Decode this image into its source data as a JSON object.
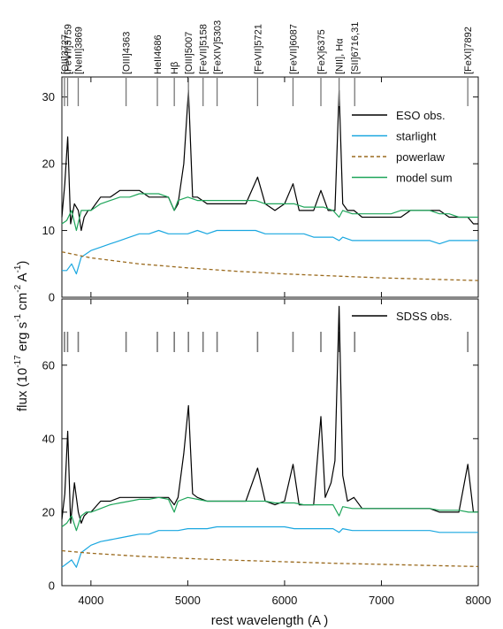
{
  "chart_data": [
    {
      "panel": "top",
      "type": "line",
      "xlim": [
        3700,
        8000
      ],
      "ylim": [
        0,
        33
      ],
      "yticks": [
        0,
        10,
        20,
        30
      ],
      "series": [
        {
          "name": "ESO obs.",
          "color": "#000000",
          "style": "solid",
          "x": [
            3700,
            3730,
            3760,
            3790,
            3830,
            3870,
            3900,
            3930,
            3970,
            4000,
            4100,
            4200,
            4300,
            4400,
            4500,
            4600,
            4700,
            4800,
            4860,
            4900,
            4959,
            5007,
            5050,
            5100,
            5200,
            5300,
            5400,
            5500,
            5600,
            5721,
            5800,
            5900,
            6000,
            6087,
            6150,
            6250,
            6300,
            6375,
            6450,
            6520,
            6563,
            6600,
            6650,
            6716,
            6800,
            6900,
            7000,
            7100,
            7200,
            7300,
            7400,
            7500,
            7600,
            7700,
            7800,
            7892,
            7950,
            8000
          ],
          "y": [
            12,
            17,
            24,
            11,
            14,
            13,
            10,
            12,
            13,
            13,
            15,
            15,
            16,
            16,
            16,
            15,
            15,
            15,
            13,
            14,
            20,
            31,
            15,
            15,
            14,
            14,
            14,
            14,
            14,
            18,
            14,
            13,
            14,
            17,
            13,
            13,
            13,
            16,
            13,
            13,
            31,
            14,
            13,
            13,
            12,
            12,
            12,
            12,
            12,
            13,
            13,
            13,
            13,
            12,
            12,
            12,
            11,
            11
          ]
        },
        {
          "name": "starlight",
          "color": "#1aa7e0",
          "style": "solid",
          "x": [
            3700,
            3750,
            3800,
            3850,
            3900,
            3950,
            4000,
            4100,
            4200,
            4300,
            4400,
            4500,
            4600,
            4700,
            4800,
            4900,
            5000,
            5100,
            5200,
            5300,
            5400,
            5500,
            5600,
            5700,
            5800,
            5900,
            6000,
            6100,
            6200,
            6300,
            6400,
            6500,
            6563,
            6600,
            6700,
            6800,
            6900,
            7000,
            7100,
            7200,
            7300,
            7400,
            7500,
            7600,
            7700,
            7800,
            7900,
            8000
          ],
          "y": [
            4,
            4,
            5,
            3.5,
            6,
            6.5,
            7,
            7.5,
            8,
            8.5,
            9,
            9.5,
            9.5,
            10,
            9.5,
            9.5,
            9.5,
            10,
            9.5,
            10,
            10,
            10,
            10,
            10,
            9.5,
            9.5,
            9.5,
            9.5,
            9.5,
            9,
            9,
            9,
            8.5,
            9,
            8.5,
            8.5,
            8.5,
            8.5,
            8.5,
            8.5,
            8.5,
            8.5,
            8.5,
            8,
            8.5,
            8.5,
            8.5,
            8.5
          ]
        },
        {
          "name": "powerlaw",
          "color": "#9a6a1e",
          "style": "dashed",
          "x": [
            3700,
            4000,
            4500,
            5000,
            5500,
            6000,
            6500,
            7000,
            7500,
            8000
          ],
          "y": [
            6.8,
            5.9,
            5.0,
            4.4,
            3.9,
            3.5,
            3.2,
            2.9,
            2.7,
            2.5
          ]
        },
        {
          "name": "model sum",
          "color": "#1fa55a",
          "style": "solid",
          "x": [
            3700,
            3750,
            3800,
            3850,
            3900,
            3950,
            4000,
            4100,
            4200,
            4300,
            4400,
            4500,
            4600,
            4700,
            4800,
            4860,
            4900,
            5000,
            5100,
            5200,
            5300,
            5400,
            5500,
            5600,
            5700,
            5800,
            5900,
            6000,
            6100,
            6200,
            6300,
            6400,
            6500,
            6563,
            6600,
            6700,
            6800,
            6900,
            7000,
            7100,
            7200,
            7300,
            7400,
            7500,
            7600,
            7700,
            7800,
            7900,
            8000
          ],
          "y": [
            11,
            11.5,
            13,
            10,
            13,
            13,
            13,
            14,
            14.5,
            15,
            15,
            15.5,
            15.5,
            15.5,
            15,
            13,
            14.5,
            15,
            14.5,
            14.5,
            14.5,
            14.5,
            14.5,
            14.5,
            14.5,
            14,
            14,
            14,
            14,
            13.5,
            13.5,
            13.5,
            13,
            12,
            13,
            12.5,
            12.5,
            12.5,
            12.5,
            12.5,
            13,
            13,
            13,
            13,
            12.5,
            12.5,
            12,
            12,
            12
          ]
        }
      ]
    },
    {
      "panel": "bottom",
      "type": "line",
      "xlim": [
        3700,
        8000
      ],
      "ylim": [
        0,
        78
      ],
      "yticks": [
        0,
        20,
        40,
        60
      ],
      "series": [
        {
          "name": "SDSS obs.",
          "color": "#000000",
          "style": "solid",
          "x": [
            3700,
            3730,
            3760,
            3790,
            3830,
            3870,
            3900,
            3930,
            3970,
            4000,
            4100,
            4200,
            4300,
            4400,
            4500,
            4600,
            4700,
            4800,
            4860,
            4900,
            4959,
            5007,
            5050,
            5100,
            5200,
            5300,
            5400,
            5500,
            5600,
            5721,
            5800,
            5900,
            6000,
            6087,
            6150,
            6250,
            6300,
            6375,
            6420,
            6480,
            6520,
            6563,
            6600,
            6650,
            6716,
            6800,
            6900,
            7000,
            7100,
            7200,
            7300,
            7400,
            7500,
            7600,
            7700,
            7800,
            7892,
            7950,
            8000
          ],
          "y": [
            18,
            25,
            42,
            17,
            28,
            20,
            17,
            19,
            20,
            20,
            23,
            23,
            24,
            24,
            24,
            24,
            24,
            24,
            22,
            24,
            36,
            49,
            25,
            24,
            23,
            23,
            23,
            23,
            23,
            32,
            23,
            22,
            23,
            33,
            22,
            22,
            22,
            46,
            24,
            28,
            34,
            76,
            30,
            23,
            24,
            21,
            21,
            21,
            21,
            21,
            21,
            21,
            21,
            20,
            20,
            20,
            33,
            20,
            20
          ]
        },
        {
          "name": "starlight",
          "color": "#1aa7e0",
          "style": "solid",
          "x": [
            3700,
            3750,
            3800,
            3850,
            3900,
            3950,
            4000,
            4100,
            4200,
            4300,
            4400,
            4500,
            4600,
            4700,
            4800,
            4900,
            5000,
            5100,
            5200,
            5300,
            5400,
            5500,
            5600,
            5700,
            5800,
            5900,
            6000,
            6100,
            6200,
            6300,
            6400,
            6500,
            6563,
            6600,
            6700,
            6800,
            6900,
            7000,
            7100,
            7200,
            7300,
            7400,
            7500,
            7600,
            7700,
            7800,
            7900,
            8000
          ],
          "y": [
            5,
            6,
            7,
            5,
            9,
            10,
            11,
            12,
            12.5,
            13,
            13.5,
            14,
            14,
            15,
            15,
            15,
            15.5,
            15.5,
            15.5,
            16,
            16,
            16,
            16,
            16,
            16,
            16,
            16,
            15.5,
            15.5,
            15.5,
            15.5,
            15.5,
            14.5,
            15.5,
            15,
            15,
            15,
            15,
            15,
            15,
            15,
            15,
            15,
            14.5,
            14.5,
            14.5,
            14.5,
            14.5
          ]
        },
        {
          "name": "powerlaw",
          "color": "#9a6a1e",
          "style": "dashed",
          "x": [
            3700,
            4000,
            4500,
            5000,
            5500,
            6000,
            6500,
            7000,
            7500,
            8000
          ],
          "y": [
            9.5,
            8.8,
            8.0,
            7.4,
            6.9,
            6.5,
            6.1,
            5.8,
            5.5,
            5.2
          ]
        },
        {
          "name": "model sum",
          "color": "#1fa55a",
          "style": "solid",
          "x": [
            3700,
            3750,
            3800,
            3850,
            3900,
            3950,
            4000,
            4100,
            4200,
            4300,
            4400,
            4500,
            4600,
            4700,
            4800,
            4860,
            4900,
            5000,
            5100,
            5200,
            5300,
            5400,
            5500,
            5600,
            5700,
            5800,
            5900,
            6000,
            6100,
            6200,
            6300,
            6400,
            6500,
            6563,
            6600,
            6700,
            6800,
            6900,
            7000,
            7100,
            7200,
            7300,
            7400,
            7500,
            7600,
            7700,
            7800,
            7900,
            8000
          ],
          "y": [
            16,
            17,
            19,
            15,
            19,
            20,
            20,
            21,
            22,
            22.5,
            23,
            23.5,
            23.5,
            24,
            23.5,
            20,
            23,
            24,
            23.5,
            23,
            23,
            23,
            23,
            23,
            23,
            23,
            22.5,
            22.5,
            22.5,
            22,
            22,
            22,
            22,
            19,
            21.5,
            21,
            21,
            21,
            21,
            21,
            21,
            21,
            21,
            21,
            20.5,
            20.5,
            20.5,
            20,
            20
          ]
        }
      ]
    }
  ],
  "axes": {
    "xticks": [
      4000,
      5000,
      6000,
      7000,
      8000
    ],
    "xlabel": "rest wavelength  (A )",
    "ylabel_parts": [
      "flux  (10",
      "-17",
      " erg s",
      "-1",
      " cm",
      "-2",
      " A",
      "-1",
      ")"
    ]
  },
  "emission_lines": [
    {
      "label": "[OII]3727",
      "wavelength": 3727
    },
    {
      "label": "[FeVII]3759",
      "wavelength": 3759
    },
    {
      "label": "[NeIII]3869",
      "wavelength": 3869
    },
    {
      "label": "[OIII]4363",
      "wavelength": 4363
    },
    {
      "label": "HeII4686",
      "wavelength": 4686
    },
    {
      "label": "Hβ",
      "wavelength": 4861
    },
    {
      "label": "[OIII]5007",
      "wavelength": 5007
    },
    {
      "label": "[FeVII]5158",
      "wavelength": 5158
    },
    {
      "label": "[FeXIV]5303",
      "wavelength": 5303
    },
    {
      "label": "[FeVII]5721",
      "wavelength": 5721
    },
    {
      "label": "[FeVII]6087",
      "wavelength": 6087
    },
    {
      "label": "[FeX]6375",
      "wavelength": 6375
    },
    {
      "label": "[NII], Hα",
      "wavelength": 6563
    },
    {
      "label": "[SII]6716,31",
      "wavelength": 6724
    },
    {
      "label": "[FeXI]7892",
      "wavelength": 7892
    }
  ],
  "legend_top": [
    "ESO obs.",
    "starlight",
    "powerlaw",
    "model sum"
  ],
  "legend_bottom": [
    "SDSS obs."
  ]
}
